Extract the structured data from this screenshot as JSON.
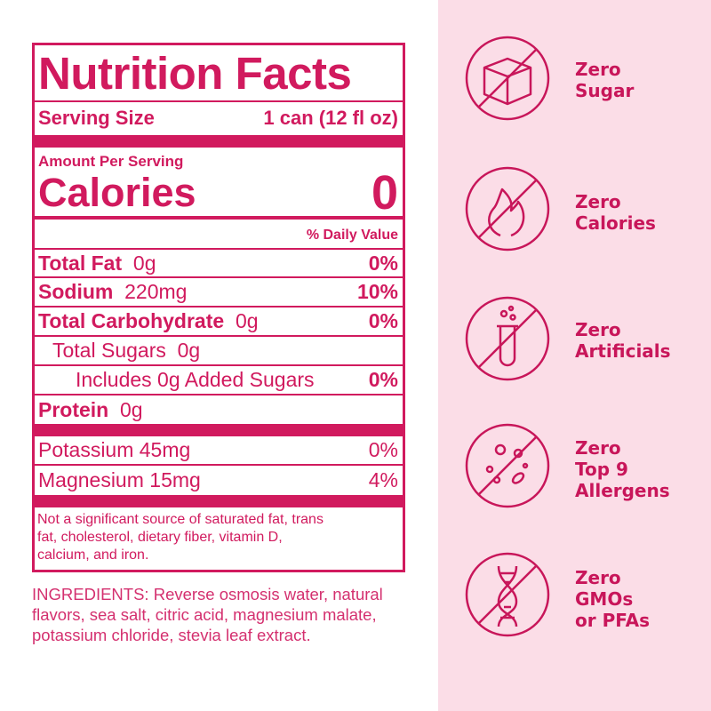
{
  "label": {
    "title": "Nutrition Facts",
    "serving_label": "Serving Size",
    "serving_value": "1 can (12 fl oz)",
    "amount_per_serving": "Amount Per Serving",
    "calories_label": "Calories",
    "calories_value": "0",
    "daily_value_header": "% Daily Value",
    "nutrients": [
      {
        "name": "Total Fat",
        "amount": "0g",
        "dv": "0%"
      },
      {
        "name": "Sodium",
        "amount": "220mg",
        "dv": "10%"
      },
      {
        "name": "Total Carbohydrate",
        "amount": "0g",
        "dv": "0%"
      },
      {
        "name": "Total Sugars",
        "amount": "0g",
        "dv": ""
      },
      {
        "name": "Includes 0g Added Sugars",
        "amount": "",
        "dv": "0%"
      },
      {
        "name": "Protein",
        "amount": "0g",
        "dv": ""
      }
    ],
    "minerals": [
      {
        "name": "Potassium 45mg",
        "dv": "0%"
      },
      {
        "name": "Magnesium 15mg",
        "dv": "4%"
      }
    ],
    "footnote": "Not a significant source of saturated fat, trans fat, cholesterol, dietary fiber, vitamin D, calcium, and iron."
  },
  "ingredients": "INGREDIENTS: Reverse osmosis water, natural flavors, sea salt, citric acid, magnesium malate, potassium chloride, stevia leaf extract.",
  "claims": [
    {
      "icon": "sugar-cube-icon",
      "line1": "Zero",
      "line2": "Sugar",
      "line3": ""
    },
    {
      "icon": "flame-icon",
      "line1": "Zero",
      "line2": "Calories",
      "line3": ""
    },
    {
      "icon": "test-tube-icon",
      "line1": "Zero",
      "line2": "Artificials",
      "line3": ""
    },
    {
      "icon": "allergen-icon",
      "line1": "Zero",
      "line2": "Top 9",
      "line3": "Allergens"
    },
    {
      "icon": "dna-icon",
      "line1": "Zero",
      "line2": "GMOs",
      "line3": "or PFAs"
    }
  ],
  "colors": {
    "accent": "#d11a5e",
    "panel": "#fbdde7"
  }
}
